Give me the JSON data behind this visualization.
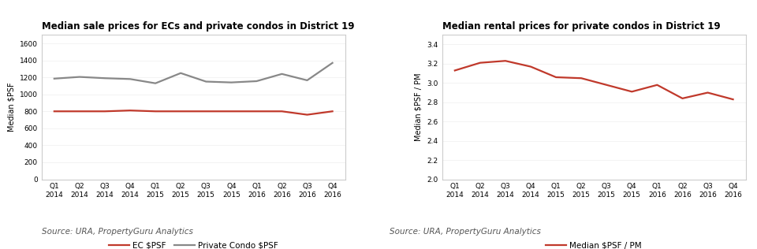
{
  "left_title": "Median sale prices for ECs and private condos in District 19",
  "right_title": "Median rental prices for private condos in District 19",
  "source_text": "Source: URA, PropertyGuru Analytics",
  "x_labels": [
    "Q1\n2014",
    "Q2\n2014",
    "Q3\n2014",
    "Q4\n2014",
    "Q1\n2015",
    "Q2\n2015",
    "Q3\n2015",
    "Q4\n2015",
    "Q1\n2016",
    "Q2\n2016",
    "Q3\n2016",
    "Q4\n2016"
  ],
  "ec_psf": [
    800,
    800,
    800,
    810,
    800,
    800,
    800,
    800,
    800,
    800,
    760,
    800
  ],
  "condo_psf": [
    1185,
    1205,
    1190,
    1180,
    1130,
    1250,
    1150,
    1140,
    1155,
    1240,
    1165,
    1370
  ],
  "rental_psf": [
    3.13,
    3.21,
    3.23,
    3.17,
    3.06,
    3.05,
    2.98,
    2.91,
    2.98,
    2.84,
    2.9,
    2.83
  ],
  "left_ylabel": "Median $PSF",
  "right_ylabel": "Median $PSF / PM",
  "left_ylim": [
    0,
    1700
  ],
  "left_yticks": [
    0,
    200,
    400,
    600,
    800,
    1000,
    1200,
    1400,
    1600
  ],
  "right_ylim": [
    2.0,
    3.5
  ],
  "right_yticks": [
    2.0,
    2.2,
    2.4,
    2.6,
    2.8,
    3.0,
    3.2,
    3.4
  ],
  "ec_color": "#c0392b",
  "condo_color": "#888888",
  "rental_color": "#c0392b",
  "legend_left": [
    "EC $PSF",
    "Private Condo $PSF"
  ],
  "legend_right": [
    "Median $PSF / PM"
  ],
  "bg_color": "#ffffff",
  "border_color": "#cccccc",
  "title_fontsize": 8.5,
  "label_fontsize": 7.0,
  "tick_fontsize": 6.5,
  "source_fontsize": 7.5,
  "legend_fontsize": 7.5,
  "line_width": 1.6
}
